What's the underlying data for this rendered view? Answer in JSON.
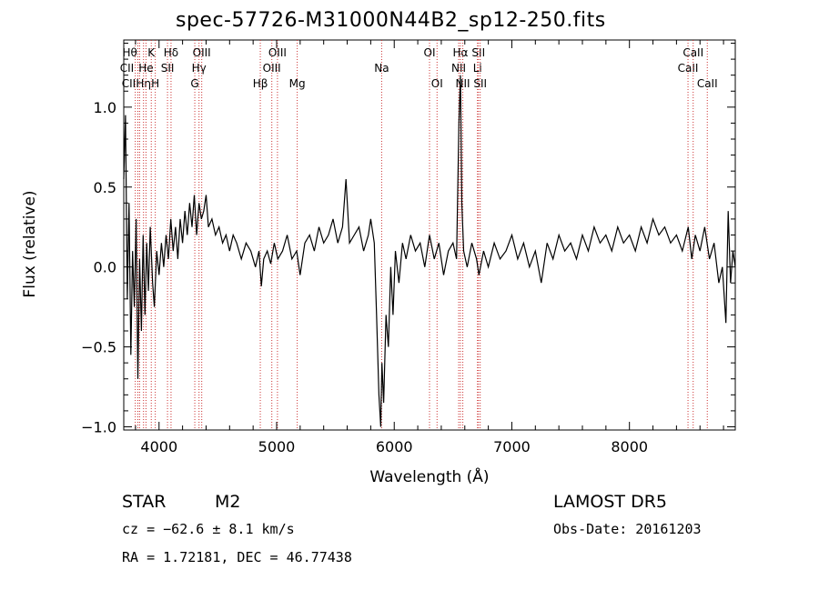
{
  "chart_data": {
    "type": "line",
    "title": "spec-57726-M31000N44B2_sp12-250.fits",
    "xlabel": "Wavelength (Å)",
    "ylabel": "Flux (relative)",
    "xlim": [
      3700,
      8900
    ],
    "ylim": [
      -1.02,
      1.42
    ],
    "xticks": [
      4000,
      5000,
      6000,
      7000,
      8000
    ],
    "yticks": [
      -1.0,
      -0.5,
      0.0,
      0.5,
      1.0
    ],
    "ytick_labels": [
      "−1.0",
      "−0.5",
      "0.0",
      "0.5",
      "1.0"
    ],
    "line_color": "#000000",
    "marker_color": "#cc3333",
    "series": [
      {
        "values": [
          [
            3700,
            0.55
          ],
          [
            3715,
            0.95
          ],
          [
            3730,
            -0.2
          ],
          [
            3745,
            0.4
          ],
          [
            3760,
            -0.55
          ],
          [
            3775,
            0.1
          ],
          [
            3790,
            -0.25
          ],
          [
            3805,
            0.3
          ],
          [
            3820,
            -0.7
          ],
          [
            3835,
            0.05
          ],
          [
            3850,
            -0.4
          ],
          [
            3865,
            0.2
          ],
          [
            3880,
            -0.3
          ],
          [
            3895,
            0.15
          ],
          [
            3910,
            -0.15
          ],
          [
            3925,
            0.25
          ],
          [
            3945,
            -0.1
          ],
          [
            3960,
            -0.25
          ],
          [
            3980,
            0.1
          ],
          [
            4000,
            -0.05
          ],
          [
            4020,
            0.15
          ],
          [
            4040,
            0.0
          ],
          [
            4060,
            0.2
          ],
          [
            4080,
            0.05
          ],
          [
            4100,
            0.3
          ],
          [
            4120,
            0.1
          ],
          [
            4140,
            0.25
          ],
          [
            4160,
            0.05
          ],
          [
            4180,
            0.3
          ],
          [
            4200,
            0.15
          ],
          [
            4220,
            0.35
          ],
          [
            4240,
            0.2
          ],
          [
            4260,
            0.4
          ],
          [
            4280,
            0.25
          ],
          [
            4300,
            0.45
          ],
          [
            4320,
            0.2
          ],
          [
            4340,
            0.4
          ],
          [
            4360,
            0.3
          ],
          [
            4380,
            0.35
          ],
          [
            4400,
            0.45
          ],
          [
            4420,
            0.25
          ],
          [
            4450,
            0.3
          ],
          [
            4480,
            0.2
          ],
          [
            4510,
            0.25
          ],
          [
            4540,
            0.15
          ],
          [
            4570,
            0.2
          ],
          [
            4600,
            0.1
          ],
          [
            4630,
            0.2
          ],
          [
            4660,
            0.15
          ],
          [
            4700,
            0.05
          ],
          [
            4740,
            0.15
          ],
          [
            4780,
            0.1
          ],
          [
            4820,
            0.0
          ],
          [
            4850,
            0.1
          ],
          [
            4870,
            -0.12
          ],
          [
            4890,
            0.05
          ],
          [
            4920,
            0.1
          ],
          [
            4950,
            0.02
          ],
          [
            4980,
            0.15
          ],
          [
            5010,
            0.05
          ],
          [
            5050,
            0.1
          ],
          [
            5090,
            0.2
          ],
          [
            5130,
            0.05
          ],
          [
            5170,
            0.1
          ],
          [
            5200,
            -0.05
          ],
          [
            5240,
            0.15
          ],
          [
            5280,
            0.2
          ],
          [
            5320,
            0.1
          ],
          [
            5360,
            0.25
          ],
          [
            5400,
            0.15
          ],
          [
            5440,
            0.2
          ],
          [
            5480,
            0.3
          ],
          [
            5520,
            0.15
          ],
          [
            5560,
            0.25
          ],
          [
            5590,
            0.55
          ],
          [
            5620,
            0.15
          ],
          [
            5660,
            0.2
          ],
          [
            5700,
            0.25
          ],
          [
            5740,
            0.1
          ],
          [
            5780,
            0.2
          ],
          [
            5800,
            0.3
          ],
          [
            5830,
            0.15
          ],
          [
            5850,
            -0.3
          ],
          [
            5870,
            -0.8
          ],
          [
            5885,
            -1.0
          ],
          [
            5895,
            -0.6
          ],
          [
            5910,
            -0.85
          ],
          [
            5930,
            -0.3
          ],
          [
            5950,
            -0.5
          ],
          [
            5970,
            0.0
          ],
          [
            5990,
            -0.3
          ],
          [
            6010,
            0.1
          ],
          [
            6040,
            -0.1
          ],
          [
            6070,
            0.15
          ],
          [
            6100,
            0.05
          ],
          [
            6140,
            0.2
          ],
          [
            6180,
            0.1
          ],
          [
            6220,
            0.15
          ],
          [
            6260,
            0.0
          ],
          [
            6300,
            0.2
          ],
          [
            6340,
            0.05
          ],
          [
            6380,
            0.15
          ],
          [
            6420,
            -0.05
          ],
          [
            6460,
            0.1
          ],
          [
            6500,
            0.15
          ],
          [
            6530,
            0.05
          ],
          [
            6550,
            0.9
          ],
          [
            6563,
            1.2
          ],
          [
            6575,
            0.4
          ],
          [
            6590,
            0.1
          ],
          [
            6620,
            0.0
          ],
          [
            6660,
            0.15
          ],
          [
            6700,
            0.05
          ],
          [
            6720,
            -0.05
          ],
          [
            6760,
            0.1
          ],
          [
            6800,
            0.0
          ],
          [
            6850,
            0.15
          ],
          [
            6900,
            0.05
          ],
          [
            6950,
            0.1
          ],
          [
            7000,
            0.2
          ],
          [
            7050,
            0.05
          ],
          [
            7100,
            0.15
          ],
          [
            7150,
            0.0
          ],
          [
            7200,
            0.1
          ],
          [
            7250,
            -0.1
          ],
          [
            7300,
            0.15
          ],
          [
            7350,
            0.05
          ],
          [
            7400,
            0.2
          ],
          [
            7450,
            0.1
          ],
          [
            7500,
            0.15
          ],
          [
            7550,
            0.05
          ],
          [
            7600,
            0.2
          ],
          [
            7650,
            0.1
          ],
          [
            7700,
            0.25
          ],
          [
            7750,
            0.15
          ],
          [
            7800,
            0.2
          ],
          [
            7850,
            0.1
          ],
          [
            7900,
            0.25
          ],
          [
            7950,
            0.15
          ],
          [
            8000,
            0.2
          ],
          [
            8050,
            0.1
          ],
          [
            8100,
            0.25
          ],
          [
            8150,
            0.15
          ],
          [
            8200,
            0.3
          ],
          [
            8250,
            0.2
          ],
          [
            8300,
            0.25
          ],
          [
            8350,
            0.15
          ],
          [
            8400,
            0.2
          ],
          [
            8450,
            0.1
          ],
          [
            8500,
            0.25
          ],
          [
            8530,
            0.05
          ],
          [
            8560,
            0.2
          ],
          [
            8600,
            0.1
          ],
          [
            8640,
            0.25
          ],
          [
            8680,
            0.05
          ],
          [
            8720,
            0.15
          ],
          [
            8760,
            -0.1
          ],
          [
            8790,
            0.0
          ],
          [
            8820,
            -0.35
          ],
          [
            8840,
            0.35
          ],
          [
            8860,
            -0.1
          ],
          [
            8880,
            0.1
          ],
          [
            8900,
            0.0
          ]
        ]
      }
    ],
    "lines": [
      {
        "wl": 3798,
        "label": "Hθ",
        "row": 0,
        "lx": -6
      },
      {
        "wl": 3820,
        "label": "CII",
        "row": 1,
        "lx": -12
      },
      {
        "wl": 3835,
        "label": "CII",
        "row": 2,
        "lx": -12
      },
      {
        "wl": 3868,
        "label": "Hη",
        "row": 2,
        "lx": 0
      },
      {
        "wl": 3889,
        "label": "He",
        "row": 1,
        "lx": 0
      },
      {
        "wl": 3934,
        "label": "K",
        "row": 0,
        "lx": 0
      },
      {
        "wl": 3968,
        "label": "H",
        "row": 2,
        "lx": 0
      },
      {
        "wl": 4072,
        "label": "SII",
        "row": 1,
        "lx": 0
      },
      {
        "wl": 4102,
        "label": "Hδ",
        "row": 0,
        "lx": 0
      },
      {
        "wl": 4304,
        "label": "G",
        "row": 2,
        "lx": 0
      },
      {
        "wl": 4340,
        "label": "Hγ",
        "row": 1,
        "lx": 0
      },
      {
        "wl": 4363,
        "label": "OIII",
        "row": 0,
        "lx": 0
      },
      {
        "wl": 4861,
        "label": "Hβ",
        "row": 2,
        "lx": 0
      },
      {
        "wl": 4959,
        "label": "OIII",
        "row": 1,
        "lx": 0
      },
      {
        "wl": 5007,
        "label": "OIII",
        "row": 0,
        "lx": 0
      },
      {
        "wl": 5175,
        "label": "Mg",
        "row": 2,
        "lx": 0
      },
      {
        "wl": 5893,
        "label": "Na",
        "row": 1,
        "lx": 0
      },
      {
        "wl": 6300,
        "label": "OI",
        "row": 0,
        "lx": 0
      },
      {
        "wl": 6364,
        "label": "OI",
        "row": 2,
        "lx": 0
      },
      {
        "wl": 6548,
        "label": "NII",
        "row": 1,
        "lx": 0
      },
      {
        "wl": 6563,
        "label": "Hα",
        "row": 0,
        "lx": 0
      },
      {
        "wl": 6583,
        "label": "NII",
        "row": 2,
        "lx": 0
      },
      {
        "wl": 6708,
        "label": "Li",
        "row": 1,
        "lx": 0
      },
      {
        "wl": 6716,
        "label": "SII",
        "row": 0,
        "lx": 0
      },
      {
        "wl": 6731,
        "label": "SII",
        "row": 2,
        "lx": 0
      },
      {
        "wl": 8498,
        "label": "CaII",
        "row": 1,
        "lx": 0
      },
      {
        "wl": 8542,
        "label": "CaII",
        "row": 0,
        "lx": 0
      },
      {
        "wl": 8662,
        "label": "CaII",
        "row": 2,
        "lx": 0
      }
    ]
  },
  "info": {
    "objtype": "STAR",
    "subclass": "M2",
    "survey": "LAMOST  DR5",
    "cz": "cz = −62.6 ± 8.1 km/s",
    "obsdate": "Obs-Date: 20161203",
    "radec": "RA =   1.72181, DEC =  46.77438"
  }
}
